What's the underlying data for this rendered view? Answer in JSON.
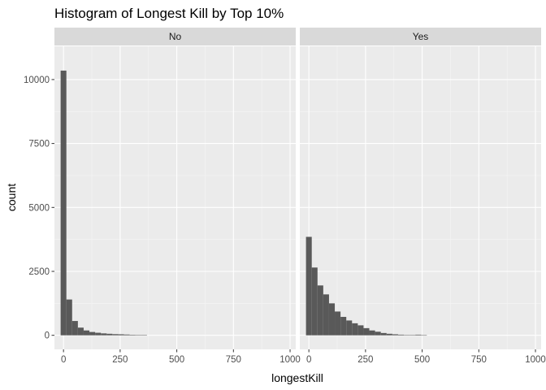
{
  "chart_data": {
    "type": "bar",
    "title": "Histogram of Longest Kill by Top 10%",
    "xlabel": "longestKill",
    "ylabel": "count",
    "xlim": [
      -40,
      1025
    ],
    "ylim": [
      -550,
      11300
    ],
    "x_ticks": [
      0,
      250,
      500,
      750,
      1000
    ],
    "y_ticks": [
      0,
      2500,
      5000,
      7500,
      10000
    ],
    "x_tick_labels": [
      "0",
      "250",
      "500",
      "750",
      "1000"
    ],
    "y_tick_labels": [
      "0",
      "2500",
      "5000",
      "7500",
      "10000"
    ],
    "bin_width": 25.4,
    "facet_variable": "top 10%",
    "grid": true,
    "bar_color": "#595959",
    "panel_background": "#ebebeb",
    "strip_background": "#d9d9d9",
    "series": [
      {
        "name": "No",
        "bin_centers": [
          0,
          25.4,
          50.8,
          76.2,
          101.6,
          127.0,
          152.4,
          177.8,
          203.2,
          228.6,
          254.0,
          279.4,
          304.8,
          330.2,
          355.6
        ],
        "values": [
          10350,
          1400,
          560,
          300,
          190,
          130,
          100,
          75,
          60,
          45,
          40,
          30,
          20,
          15,
          10
        ]
      },
      {
        "name": "Yes",
        "bin_centers": [
          0,
          25.4,
          50.8,
          76.2,
          101.6,
          127.0,
          152.4,
          177.8,
          203.2,
          228.6,
          254.0,
          279.4,
          304.8,
          330.2,
          355.6,
          381.0,
          406.4,
          431.8,
          457.2,
          482.6,
          508.0
        ],
        "values": [
          3850,
          2650,
          1950,
          1600,
          1250,
          930,
          720,
          580,
          470,
          390,
          280,
          190,
          140,
          90,
          60,
          40,
          25,
          15,
          10,
          25,
          5
        ]
      }
    ]
  }
}
